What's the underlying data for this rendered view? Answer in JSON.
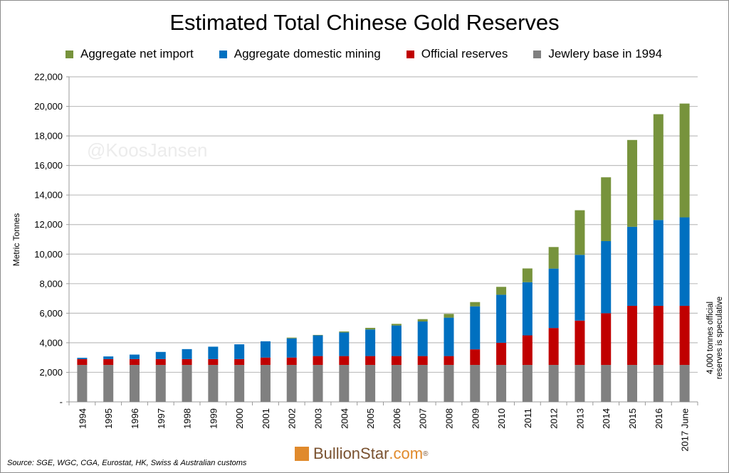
{
  "chart_data": {
    "type": "bar",
    "stacked": true,
    "title": "Estimated Total Chinese Gold Reserves",
    "ylabel": "Metric Tonnes",
    "xlabel": "",
    "ylim": [
      0,
      22000
    ],
    "yticks": [
      "-",
      "2,000",
      "4,000",
      "6,000",
      "8,000",
      "10,000",
      "12,000",
      "14,000",
      "16,000",
      "18,000",
      "20,000",
      "22,000"
    ],
    "grid": true,
    "legend_position": "top",
    "categories": [
      "1994",
      "1995",
      "1996",
      "1997",
      "1998",
      "1999",
      "2000",
      "2001",
      "2002",
      "2003",
      "2004",
      "2005",
      "2006",
      "2007",
      "2008",
      "2009",
      "2010",
      "2011",
      "2012",
      "2013",
      "2014",
      "2015",
      "2016",
      "2017 June"
    ],
    "series": [
      {
        "name": "Jewlery base in 1994",
        "color": "#808080",
        "values": [
          2500,
          2500,
          2500,
          2500,
          2500,
          2500,
          2500,
          2500,
          2500,
          2500,
          2500,
          2500,
          2500,
          2500,
          2500,
          2500,
          2500,
          2500,
          2500,
          2500,
          2500,
          2500,
          2500,
          2500
        ]
      },
      {
        "name": "Official reserves",
        "color": "#c00000",
        "values": [
          395,
          395,
          395,
          395,
          395,
          395,
          395,
          500,
          500,
          600,
          600,
          600,
          600,
          600,
          600,
          1054,
          1500,
          2000,
          2500,
          3000,
          3500,
          4000,
          4000,
          4000
        ]
      },
      {
        "name": "Aggregate domestic mining",
        "color": "#0070c0",
        "values": [
          90,
          180,
          305,
          485,
          675,
          840,
          1000,
          1100,
          1300,
          1400,
          1600,
          1800,
          2070,
          2340,
          2600,
          2910,
          3250,
          3600,
          4020,
          4450,
          4880,
          5350,
          5810,
          5990
        ]
      },
      {
        "name": "Aggregate net import",
        "color": "#77933c",
        "values": [
          0,
          0,
          0,
          0,
          0,
          0,
          0,
          0,
          50,
          30,
          65,
          110,
          110,
          160,
          255,
          290,
          535,
          930,
          1460,
          3020,
          4320,
          5875,
          7160,
          7700
        ]
      }
    ],
    "legend_order": [
      "Aggregate net import",
      "Aggregate domestic mining",
      "Official reserves",
      "Jewlery base in 1994"
    ],
    "annotation": "4,000 tonnes official reserves is speculative"
  },
  "watermark": "@KoosJansen",
  "source": "Source: SGE, WGC, CGA, Eurostat, HK, Swiss & Australian customs",
  "logo": {
    "name": "BullionStar",
    "suffix": ".com",
    "reg": "®"
  }
}
